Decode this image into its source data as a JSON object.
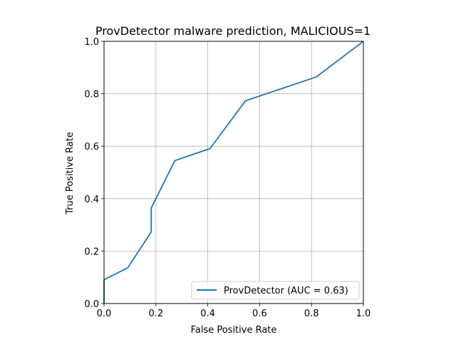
{
  "chart_data": {
    "type": "line",
    "title": "ProvDetector malware prediction, MALICIOUS=1",
    "xlabel": "False Positive Rate",
    "ylabel": "True Positive Rate",
    "xlim": [
      0.0,
      1.0
    ],
    "ylim": [
      0.0,
      1.0
    ],
    "xticks": [
      "0.0",
      "0.2",
      "0.4",
      "0.6",
      "0.8",
      "1.0"
    ],
    "yticks": [
      "0.0",
      "0.2",
      "0.4",
      "0.6",
      "0.8",
      "1.0"
    ],
    "grid": true,
    "legend_position": "lower-right",
    "series": [
      {
        "name": "ProvDetector (AUC = 0.63)",
        "color": "#1f77b4",
        "x": [
          0.0,
          0.0,
          0.091,
          0.182,
          0.182,
          0.273,
          0.409,
          0.545,
          0.818,
          1.0
        ],
        "y": [
          0.0,
          0.091,
          0.136,
          0.273,
          0.364,
          0.545,
          0.591,
          0.773,
          0.864,
          1.0
        ]
      }
    ]
  }
}
